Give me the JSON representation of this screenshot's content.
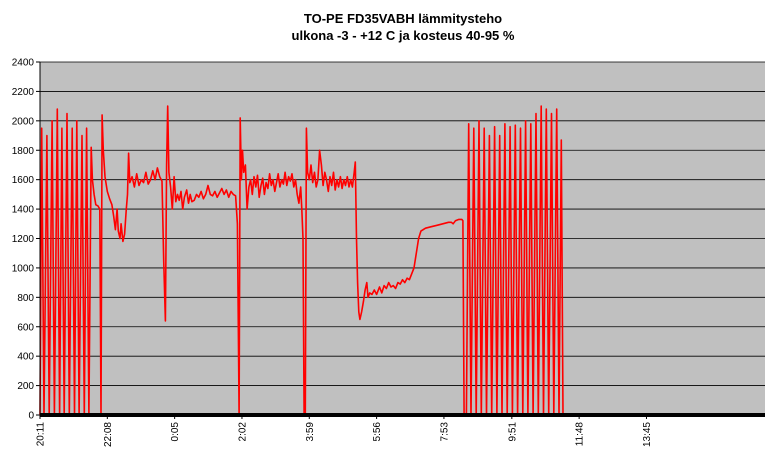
{
  "chart_data": {
    "type": "line",
    "title": "TO-PE FD35VABH lämmitysteho",
    "subtitle": "ulkona -3 - +12 C ja kosteus 40-95 %",
    "xlabel": "",
    "ylabel": "",
    "ylim": [
      0,
      2400
    ],
    "yticks": [
      0,
      200,
      400,
      600,
      800,
      1000,
      1200,
      1400,
      1600,
      1800,
      2000,
      2200,
      2400
    ],
    "xlim": [
      0,
      1260
    ],
    "xticks": [
      {
        "label": "20:11",
        "value": 0
      },
      {
        "label": "22:08",
        "value": 117
      },
      {
        "label": "0:05",
        "value": 234
      },
      {
        "label": "2:02",
        "value": 351
      },
      {
        "label": "3:59",
        "value": 468
      },
      {
        "label": "5:56",
        "value": 585
      },
      {
        "label": "7:53",
        "value": 702
      },
      {
        "label": "9:51",
        "value": 820
      },
      {
        "label": "11:48",
        "value": 937
      },
      {
        "label": "13:45",
        "value": 1054
      }
    ],
    "grid": true,
    "legend": "none",
    "line_color": "#ff0000",
    "plot_background": "#c0c0c0",
    "series": [
      {
        "name": "",
        "points": [
          [
            0,
            0
          ],
          [
            3,
            1950
          ],
          [
            7,
            0
          ],
          [
            12,
            1900
          ],
          [
            16,
            0
          ],
          [
            21,
            2000
          ],
          [
            25,
            0
          ],
          [
            30,
            2080
          ],
          [
            34,
            0
          ],
          [
            38,
            1950
          ],
          [
            42,
            0
          ],
          [
            47,
            2050
          ],
          [
            51,
            0
          ],
          [
            56,
            1950
          ],
          [
            60,
            0
          ],
          [
            64,
            2000
          ],
          [
            68,
            0
          ],
          [
            73,
            1900
          ],
          [
            77,
            0
          ],
          [
            81,
            1950
          ],
          [
            85,
            0
          ],
          [
            89,
            1820
          ],
          [
            91,
            1600
          ],
          [
            94,
            1500
          ],
          [
            97,
            1430
          ],
          [
            101,
            1420
          ],
          [
            104,
            1400
          ],
          [
            106,
            0
          ],
          [
            108,
            2040
          ],
          [
            110,
            1800
          ],
          [
            113,
            1620
          ],
          [
            117,
            1520
          ],
          [
            121,
            1470
          ],
          [
            125,
            1430
          ],
          [
            128,
            1350
          ],
          [
            131,
            1260
          ],
          [
            134,
            1400
          ],
          [
            136,
            1250
          ],
          [
            139,
            1200
          ],
          [
            141,
            1300
          ],
          [
            144,
            1180
          ],
          [
            147,
            1230
          ],
          [
            150,
            1400
          ],
          [
            152,
            1500
          ],
          [
            154,
            1780
          ],
          [
            156,
            1580
          ],
          [
            160,
            1620
          ],
          [
            164,
            1550
          ],
          [
            168,
            1640
          ],
          [
            172,
            1560
          ],
          [
            176,
            1600
          ],
          [
            180,
            1580
          ],
          [
            184,
            1650
          ],
          [
            188,
            1570
          ],
          [
            192,
            1600
          ],
          [
            196,
            1660
          ],
          [
            200,
            1600
          ],
          [
            204,
            1680
          ],
          [
            208,
            1620
          ],
          [
            212,
            1590
          ],
          [
            215,
            1050
          ],
          [
            218,
            640
          ],
          [
            220,
            1700
          ],
          [
            222,
            2100
          ],
          [
            224,
            1650
          ],
          [
            227,
            1550
          ],
          [
            230,
            1400
          ],
          [
            233,
            1620
          ],
          [
            236,
            1450
          ],
          [
            239,
            1500
          ],
          [
            242,
            1460
          ],
          [
            245,
            1520
          ],
          [
            248,
            1400
          ],
          [
            251,
            1480
          ],
          [
            255,
            1530
          ],
          [
            258,
            1440
          ],
          [
            261,
            1500
          ],
          [
            264,
            1450
          ],
          [
            268,
            1460
          ],
          [
            272,
            1500
          ],
          [
            276,
            1480
          ],
          [
            280,
            1520
          ],
          [
            284,
            1470
          ],
          [
            288,
            1500
          ],
          [
            292,
            1560
          ],
          [
            296,
            1500
          ],
          [
            300,
            1490
          ],
          [
            304,
            1520
          ],
          [
            308,
            1480
          ],
          [
            312,
            1510
          ],
          [
            316,
            1540
          ],
          [
            320,
            1500
          ],
          [
            324,
            1530
          ],
          [
            328,
            1480
          ],
          [
            332,
            1520
          ],
          [
            336,
            1500
          ],
          [
            340,
            1490
          ],
          [
            343,
            1300
          ],
          [
            346,
            0
          ],
          [
            348,
            2020
          ],
          [
            350,
            1600
          ],
          [
            352,
            1800
          ],
          [
            354,
            1650
          ],
          [
            357,
            1700
          ],
          [
            360,
            1400
          ],
          [
            363,
            1550
          ],
          [
            366,
            1600
          ],
          [
            369,
            1500
          ],
          [
            372,
            1620
          ],
          [
            375,
            1550
          ],
          [
            378,
            1630
          ],
          [
            381,
            1480
          ],
          [
            384,
            1560
          ],
          [
            387,
            1610
          ],
          [
            390,
            1500
          ],
          [
            393,
            1580
          ],
          [
            396,
            1540
          ],
          [
            399,
            1640
          ],
          [
            402,
            1560
          ],
          [
            405,
            1600
          ],
          [
            408,
            1520
          ],
          [
            411,
            1580
          ],
          [
            414,
            1640
          ],
          [
            417,
            1550
          ],
          [
            420,
            1600
          ],
          [
            423,
            1570
          ],
          [
            426,
            1650
          ],
          [
            429,
            1560
          ],
          [
            432,
            1620
          ],
          [
            435,
            1590
          ],
          [
            438,
            1640
          ],
          [
            441,
            1550
          ],
          [
            444,
            1600
          ],
          [
            447,
            1500
          ],
          [
            450,
            1440
          ],
          [
            453,
            1550
          ],
          [
            455,
            1400
          ],
          [
            457,
            1200
          ],
          [
            459,
            0
          ],
          [
            461,
            0
          ],
          [
            463,
            1950
          ],
          [
            465,
            1650
          ],
          [
            468,
            1600
          ],
          [
            471,
            1700
          ],
          [
            474,
            1580
          ],
          [
            477,
            1650
          ],
          [
            480,
            1550
          ],
          [
            483,
            1600
          ],
          [
            486,
            1800
          ],
          [
            489,
            1700
          ],
          [
            492,
            1560
          ],
          [
            495,
            1650
          ],
          [
            498,
            1600
          ],
          [
            501,
            1520
          ],
          [
            504,
            1620
          ],
          [
            507,
            1560
          ],
          [
            510,
            1650
          ],
          [
            513,
            1530
          ],
          [
            516,
            1600
          ],
          [
            519,
            1550
          ],
          [
            522,
            1620
          ],
          [
            525,
            1540
          ],
          [
            528,
            1600
          ],
          [
            531,
            1560
          ],
          [
            534,
            1620
          ],
          [
            537,
            1550
          ],
          [
            540,
            1600
          ],
          [
            543,
            1550
          ],
          [
            546,
            1650
          ],
          [
            548,
            1720
          ],
          [
            550,
            1200
          ],
          [
            552,
            900
          ],
          [
            554,
            700
          ],
          [
            556,
            650
          ],
          [
            559,
            700
          ],
          [
            562,
            770
          ],
          [
            565,
            850
          ],
          [
            568,
            900
          ],
          [
            570,
            800
          ],
          [
            573,
            830
          ],
          [
            577,
            820
          ],
          [
            581,
            850
          ],
          [
            585,
            820
          ],
          [
            590,
            870
          ],
          [
            594,
            830
          ],
          [
            598,
            880
          ],
          [
            602,
            860
          ],
          [
            606,
            900
          ],
          [
            610,
            870
          ],
          [
            614,
            880
          ],
          [
            618,
            860
          ],
          [
            622,
            900
          ],
          [
            626,
            890
          ],
          [
            630,
            920
          ],
          [
            634,
            900
          ],
          [
            638,
            930
          ],
          [
            642,
            920
          ],
          [
            646,
            960
          ],
          [
            650,
            1000
          ],
          [
            654,
            1100
          ],
          [
            658,
            1200
          ],
          [
            662,
            1250
          ],
          [
            670,
            1270
          ],
          [
            680,
            1280
          ],
          [
            690,
            1290
          ],
          [
            700,
            1300
          ],
          [
            710,
            1310
          ],
          [
            715,
            1310
          ],
          [
            718,
            1300
          ],
          [
            722,
            1320
          ],
          [
            728,
            1330
          ],
          [
            733,
            1330
          ],
          [
            735,
            1320
          ],
          [
            737,
            0
          ],
          [
            741,
            0
          ],
          [
            745,
            1980
          ],
          [
            749,
            0
          ],
          [
            754,
            1950
          ],
          [
            758,
            0
          ],
          [
            763,
            2000
          ],
          [
            767,
            0
          ],
          [
            772,
            1950
          ],
          [
            776,
            0
          ],
          [
            781,
            1900
          ],
          [
            785,
            0
          ],
          [
            790,
            1960
          ],
          [
            794,
            0
          ],
          [
            799,
            1900
          ],
          [
            803,
            0
          ],
          [
            808,
            1980
          ],
          [
            812,
            0
          ],
          [
            817,
            1960
          ],
          [
            821,
            0
          ],
          [
            826,
            1970
          ],
          [
            830,
            0
          ],
          [
            835,
            1950
          ],
          [
            839,
            0
          ],
          [
            844,
            2000
          ],
          [
            848,
            0
          ],
          [
            853,
            1980
          ],
          [
            857,
            0
          ],
          [
            862,
            2050
          ],
          [
            866,
            0
          ],
          [
            871,
            2100
          ],
          [
            875,
            0
          ],
          [
            880,
            2080
          ],
          [
            884,
            0
          ],
          [
            889,
            2050
          ],
          [
            893,
            0
          ],
          [
            898,
            2080
          ],
          [
            902,
            0
          ],
          [
            906,
            1870
          ],
          [
            909,
            0
          ]
        ]
      }
    ]
  }
}
